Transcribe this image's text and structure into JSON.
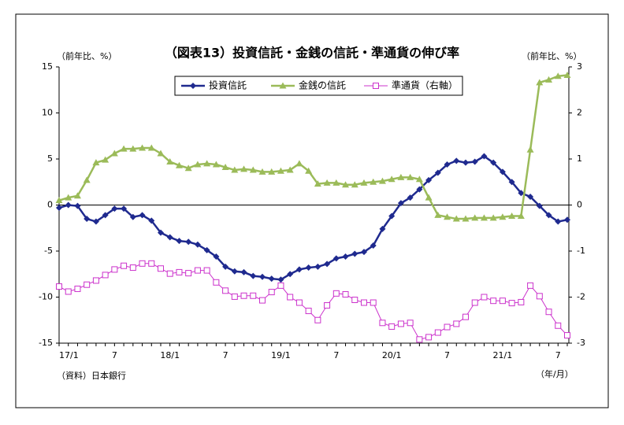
{
  "chart_data": {
    "type": "line",
    "title": "（図表13）投資信託・金銭の信託・準通貨の伸び率",
    "y_unit_label": "（前年比、%）",
    "y2_unit_label": "（前年比、%）",
    "x_unit_label": "（年/月）",
    "source": "（資料）日本銀行",
    "categories": [
      "17/1",
      null,
      null,
      null,
      null,
      null,
      "7",
      null,
      null,
      null,
      null,
      null,
      "18/1",
      null,
      null,
      null,
      null,
      null,
      "7",
      null,
      null,
      null,
      null,
      null,
      "19/1",
      null,
      null,
      null,
      null,
      null,
      "7",
      null,
      null,
      null,
      null,
      null,
      "20/1",
      null,
      null,
      null,
      null,
      null,
      "7",
      null,
      null,
      null,
      null,
      null,
      "21/1",
      null,
      null,
      null,
      null,
      null,
      "7",
      null
    ],
    "ylim": [
      -15,
      15
    ],
    "yticks": [
      -15,
      -10,
      -5,
      0,
      5,
      10,
      15
    ],
    "y2lim": [
      -3,
      3
    ],
    "y2ticks": [
      -3,
      -2,
      -1,
      0,
      1,
      2,
      3
    ],
    "series": [
      {
        "name": "投資信託",
        "color": "#1f2a8f",
        "marker": "diamond",
        "values": [
          -0.3,
          0,
          -0.1,
          -1.5,
          -1.8,
          -1.1,
          -0.4,
          -0.4,
          -1.3,
          -1.1,
          -1.7,
          -3.0,
          -3.5,
          -3.9,
          -4.0,
          -4.3,
          -4.9,
          -5.6,
          -6.7,
          -7.2,
          -7.3,
          -7.7,
          -7.8,
          -8.0,
          -8.1,
          -7.5,
          -7.0,
          -6.8,
          -6.7,
          -6.4,
          -5.8,
          -5.6,
          -5.3,
          -5.1,
          -4.4,
          -2.6,
          -1.2,
          0.2,
          0.8,
          1.7,
          2.7,
          3.5,
          4.4,
          4.8,
          4.6,
          4.7,
          5.3,
          4.6,
          3.6,
          2.5,
          1.3,
          0.9,
          -0.1,
          -1.1,
          -1.8,
          -1.6
        ]
      },
      {
        "name": "金銭の信託",
        "color": "#9bbb59",
        "marker": "triangle",
        "values": [
          0.5,
          0.8,
          1.0,
          2.7,
          4.6,
          4.9,
          5.6,
          6.1,
          6.1,
          6.2,
          6.2,
          5.6,
          4.7,
          4.3,
          4.0,
          4.4,
          4.5,
          4.4,
          4.1,
          3.8,
          3.9,
          3.8,
          3.6,
          3.6,
          3.7,
          3.8,
          4.5,
          3.7,
          2.3,
          2.4,
          2.4,
          2.2,
          2.2,
          2.4,
          2.5,
          2.6,
          2.8,
          3.0,
          3.0,
          2.8,
          0.8,
          -1.1,
          -1.3,
          -1.5,
          -1.5,
          -1.4,
          -1.4,
          -1.4,
          -1.3,
          -1.2,
          -1.2,
          6.0,
          13.3,
          13.6,
          14.0,
          14.1
        ]
      },
      {
        "name": "準通貨（右軸）",
        "color": "#cc33cc",
        "marker": "square",
        "axis": "y2",
        "values": [
          -1.77,
          -1.88,
          -1.82,
          -1.73,
          -1.64,
          -1.52,
          -1.4,
          -1.32,
          -1.36,
          -1.27,
          -1.27,
          -1.38,
          -1.49,
          -1.46,
          -1.48,
          -1.42,
          -1.42,
          -1.68,
          -1.86,
          -1.99,
          -1.97,
          -1.97,
          -2.07,
          -1.89,
          -1.75,
          -2.0,
          -2.12,
          -2.3,
          -2.5,
          -2.18,
          -1.92,
          -1.94,
          -2.06,
          -2.12,
          -2.12,
          -2.56,
          -2.64,
          -2.58,
          -2.56,
          -2.92,
          -2.87,
          -2.77,
          -2.65,
          -2.58,
          -2.43,
          -2.12,
          -2.0,
          -2.08,
          -2.08,
          -2.13,
          -2.11,
          -1.75,
          -1.98,
          -2.32,
          -2.62,
          -2.83
        ]
      }
    ]
  }
}
